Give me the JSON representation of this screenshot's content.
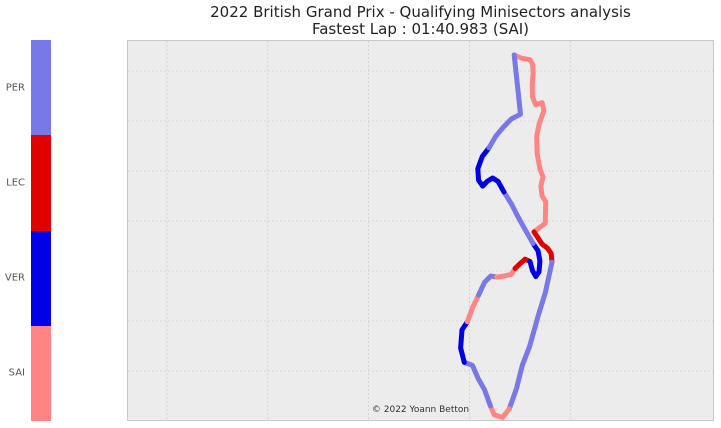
{
  "title_line1": "2022 British Grand Prix - Qualifying Minisectors analysis",
  "title_line2": "Fastest Lap : 01:40.983 (SAI)",
  "copyright": "© 2022 Yoann Betton",
  "colors": {
    "PER": "#7878e6",
    "LEC": "#e00000",
    "VER": "#0000e6",
    "SAI": "#ff8585"
  },
  "chart_data": {
    "type": "track-map",
    "grid": true,
    "legend": {
      "type": "colorbar",
      "placement": "left",
      "entries": [
        "PER",
        "LEC",
        "VER",
        "SAI"
      ]
    },
    "track": [
      {
        "driver": "SAI",
        "points": [
          [
            436,
            0
          ],
          [
            454,
            6
          ],
          [
            471,
            8
          ],
          [
            477,
            16
          ],
          [
            478,
            31
          ],
          [
            476,
            52
          ],
          [
            477,
            73
          ],
          [
            484,
            86
          ],
          [
            498,
            82
          ],
          [
            502,
            96
          ],
          [
            491,
            120
          ],
          [
            486,
            140
          ],
          [
            487,
            170
          ],
          [
            493,
            196
          ],
          [
            500,
            210
          ],
          [
            495,
            226
          ],
          [
            498,
            243
          ],
          [
            506,
            253
          ],
          [
            505,
            290
          ],
          [
            480,
            305
          ]
        ]
      },
      {
        "driver": "LEC",
        "points": [
          [
            480,
            305
          ],
          [
            498,
            326
          ],
          [
            510,
            333
          ],
          [
            518,
            342
          ],
          [
            520,
            357
          ]
        ]
      },
      {
        "driver": "PER",
        "points": [
          [
            520,
            357
          ],
          [
            505,
            410
          ],
          [
            490,
            448
          ],
          [
            470,
            503
          ],
          [
            454,
            535
          ],
          [
            441,
            575
          ],
          [
            425,
            610
          ]
        ]
      },
      {
        "driver": "SAI",
        "points": [
          [
            425,
            610
          ],
          [
            410,
            625
          ],
          [
            391,
            620
          ],
          [
            383,
            605
          ]
        ]
      },
      {
        "driver": "PER",
        "points": [
          [
            383,
            605
          ],
          [
            370,
            577
          ],
          [
            356,
            558
          ],
          [
            343,
            535
          ],
          [
            325,
            530
          ]
        ]
      },
      {
        "driver": "VER",
        "points": [
          [
            325,
            530
          ],
          [
            317,
            505
          ],
          [
            320,
            474
          ],
          [
            332,
            460
          ]
        ]
      },
      {
        "driver": "SAI",
        "points": [
          [
            332,
            460
          ],
          [
            343,
            436
          ],
          [
            357,
            414
          ]
        ]
      },
      {
        "driver": "PER",
        "points": [
          [
            357,
            414
          ],
          [
            370,
            392
          ],
          [
            384,
            381
          ],
          [
            397,
            383
          ]
        ]
      },
      {
        "driver": "SAI",
        "points": [
          [
            397,
            383
          ],
          [
            414,
            381
          ],
          [
            430,
            378
          ],
          [
            438,
            368
          ]
        ]
      },
      {
        "driver": "LEC",
        "points": [
          [
            438,
            368
          ],
          [
            450,
            359
          ],
          [
            460,
            352
          ],
          [
            471,
            356
          ]
        ]
      },
      {
        "driver": "VER",
        "points": [
          [
            471,
            356
          ],
          [
            477,
            372
          ],
          [
            484,
            382
          ],
          [
            491,
            374
          ],
          [
            493,
            355
          ],
          [
            489,
            338
          ],
          [
            478,
            325
          ]
        ]
      },
      {
        "driver": "PER",
        "points": [
          [
            478,
            325
          ],
          [
            463,
            305
          ],
          [
            445,
            280
          ],
          [
            430,
            257
          ],
          [
            413,
            236
          ]
        ]
      },
      {
        "driver": "VER",
        "points": [
          [
            413,
            236
          ],
          [
            400,
            218
          ],
          [
            388,
            212
          ],
          [
            376,
            218
          ],
          [
            366,
            226
          ],
          [
            357,
            216
          ],
          [
            355,
            196
          ],
          [
            365,
            175
          ],
          [
            380,
            160
          ]
        ]
      },
      {
        "driver": "PER",
        "points": [
          [
            380,
            160
          ],
          [
            395,
            140
          ],
          [
            410,
            126
          ],
          [
            430,
            110
          ],
          [
            450,
            102
          ],
          [
            436,
            0
          ]
        ]
      }
    ]
  }
}
